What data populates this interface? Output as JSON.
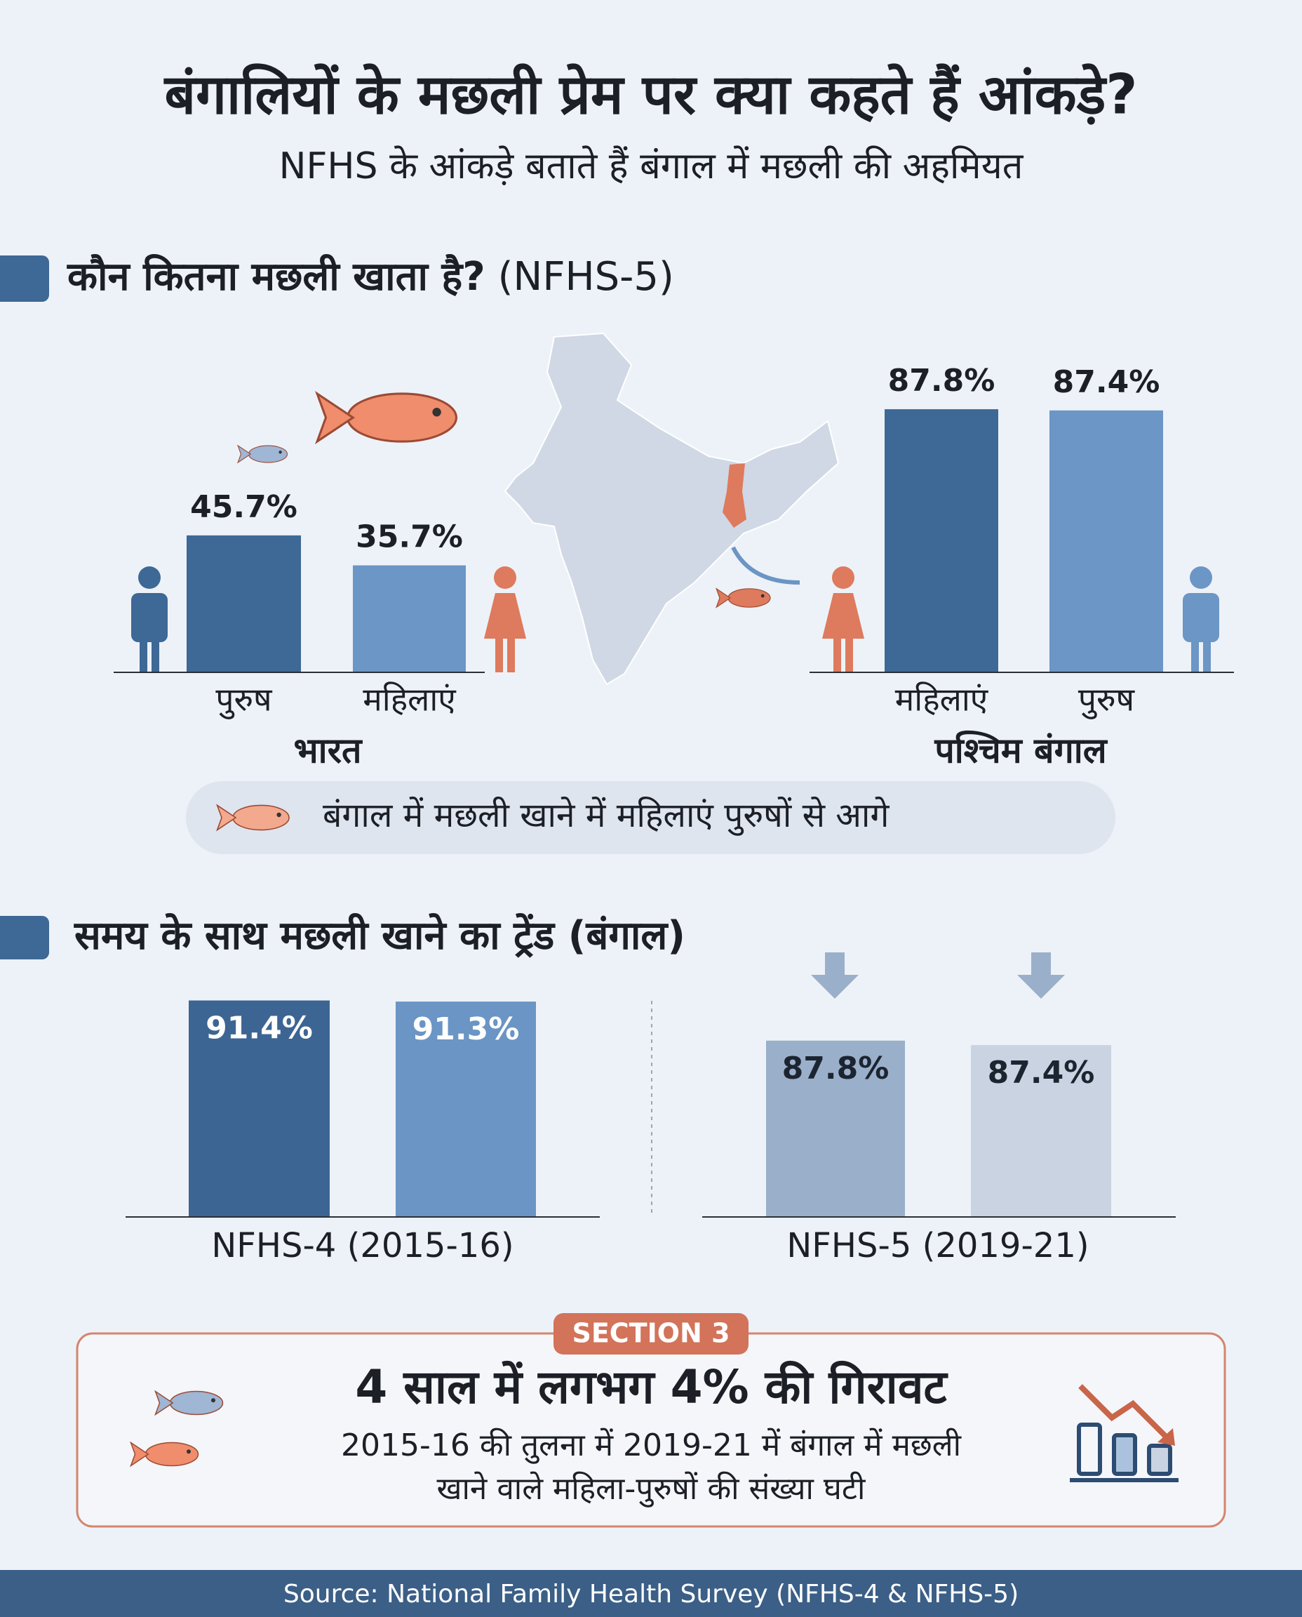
{
  "header": {
    "title": "बंगालियों के मछली प्रेम पर क्या कहते हैं आंकड़े?",
    "subtitle": "NFHS के आंकड़े बताते हैं बंगाल में मछली की अहमियत"
  },
  "sections": [
    {
      "title": "कौन कितना मछली खाता है?",
      "tag": "(NFHS-5)"
    },
    {
      "title": "समय के साथ मछली खाने का ट्रेंड (बंगाल)"
    }
  ],
  "chart_data": [
    {
      "type": "bar",
      "label": "भारत",
      "categories": [
        "पुरुष",
        "महिलाएं"
      ],
      "values": [
        45.7,
        35.7
      ],
      "value_labels": [
        "45.7%",
        "35.7%"
      ],
      "colors": [
        "#3e6895",
        "#6b96c5"
      ],
      "ylim": [
        0,
        100
      ],
      "label_position": "outside"
    },
    {
      "type": "bar",
      "label": "पश्चिम बंगाल",
      "categories": [
        "महिलाएं",
        "पुरुष"
      ],
      "values": [
        87.8,
        87.4
      ],
      "value_labels": [
        "87.8%",
        "87.4%"
      ],
      "colors": [
        "#3e6895",
        "#6b96c5"
      ],
      "ylim": [
        0,
        100
      ],
      "label_position": "outside"
    },
    {
      "type": "bar",
      "label": "NFHS-4 (2015-16)",
      "categories": [
        null,
        null
      ],
      "values": [
        91.4,
        91.3
      ],
      "value_labels": [
        "91.4%",
        "91.3%"
      ],
      "colors": [
        "#3d6593",
        "#6a95c4"
      ],
      "ylim": [
        72,
        92
      ],
      "label_position": "inside",
      "label_color": "#ffffff"
    },
    {
      "type": "bar",
      "label": "NFHS-5 (2019-21)",
      "categories": [
        null,
        null
      ],
      "values": [
        87.8,
        87.4
      ],
      "value_labels": [
        "87.8%",
        "87.4%"
      ],
      "colors": [
        "#9aafca",
        "#c9d3e2"
      ],
      "ylim": [
        72,
        92
      ],
      "label_position": "inside",
      "label_color": "#1c2430"
    }
  ],
  "note": "बंगाल में मछली खाने में महिलाएं पुरुषों से आगे",
  "summary": {
    "badge": "SECTION 3",
    "title": "4 साल में लगभग 4% की गिरावट",
    "lines": [
      "2015-16 की तुलना में 2019-21 में बंगाल में मछली",
      "खाने वाले महिला-पुरुषों की संख्या घटी"
    ]
  },
  "source": "Source: National Family Health Survey (NFHS-4 & NFHS-5)"
}
